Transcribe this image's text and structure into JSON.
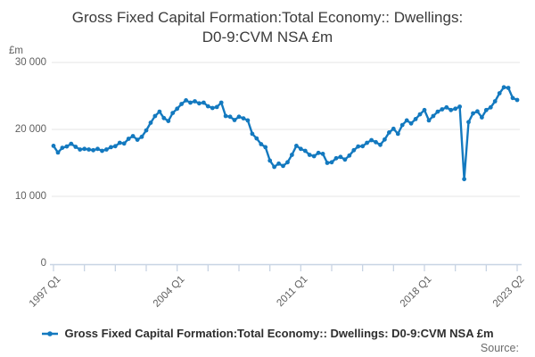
{
  "title": {
    "line1": "Gross Fixed Capital Formation:Total Economy:: Dwellings:",
    "line2": "D0-9:CVM NSA £m",
    "full": "Gross Fixed Capital Formation:Total Economy:: Dwellings: D0-9:CVM NSA £m"
  },
  "y_axis": {
    "unit_label": "£m",
    "ticks": [
      "30 000",
      "20 000",
      "10 000",
      "0"
    ],
    "min": 0,
    "max": 30000,
    "tick_interval": 10000
  },
  "x_axis": {
    "labels": [
      {
        "text": "1997 Q1",
        "tick": 0
      },
      {
        "text": "2004 Q1",
        "tick": 4
      },
      {
        "text": "2011 Q1",
        "tick": 8
      },
      {
        "text": "2018 Q1",
        "tick": 12
      },
      {
        "text": "2023 Q2",
        "tick": 15
      }
    ],
    "minor_tick_count": 16,
    "tick_interval_quarters": 7
  },
  "legend": {
    "label": "Gross Fixed Capital Formation:Total Economy:: Dwellings: D0-9:CVM NSA £m",
    "marker": "line-with-dot"
  },
  "source": {
    "label": "Source:"
  },
  "colors": {
    "line": "#1379bf",
    "grid": "#e6e6e6",
    "axis": "#c8d4e3",
    "title_text": "#3b3b3b",
    "axis_text": "#5f5f5f",
    "legend_text": "#2e2e2e"
  },
  "chart_data": {
    "type": "line",
    "title": "Gross Fixed Capital Formation:Total Economy:: Dwellings: D0-9:CVM NSA £m",
    "ylabel": "£m",
    "ylim": [
      0,
      30000
    ],
    "grid": "horizontal",
    "legend_position": "bottom-center",
    "frequency": "quarterly",
    "x_start": "1997 Q1",
    "x_end": "2023 Q2",
    "x_tick_labels": [
      "1997 Q1",
      "2004 Q1",
      "2011 Q1",
      "2018 Q1",
      "2023 Q2"
    ],
    "series": [
      {
        "name": "Gross Fixed Capital Formation:Total Economy:: Dwellings: D0-9:CVM NSA £m",
        "values": [
          17550,
          16550,
          17250,
          17450,
          17850,
          17400,
          17000,
          17100,
          17000,
          16900,
          17100,
          16800,
          17000,
          17350,
          17500,
          18000,
          17900,
          18600,
          19000,
          18450,
          18900,
          19850,
          21000,
          22000,
          22650,
          21700,
          21250,
          22450,
          23100,
          23800,
          24350,
          24000,
          24200,
          23900,
          24000,
          23450,
          23200,
          23350,
          24000,
          22000,
          21900,
          21400,
          21900,
          21650,
          21350,
          19350,
          18650,
          17800,
          17350,
          15350,
          14400,
          14900,
          14550,
          15100,
          16200,
          17550,
          17100,
          16800,
          16200,
          16000,
          16500,
          16350,
          15000,
          15100,
          15700,
          15900,
          15500,
          16100,
          16900,
          17450,
          17500,
          18000,
          18400,
          18100,
          17700,
          18500,
          19550,
          20100,
          19350,
          20650,
          21350,
          20900,
          21550,
          22250,
          22900,
          21350,
          22000,
          22650,
          23000,
          23300,
          22900,
          23100,
          23400,
          12580,
          21100,
          22400,
          22700,
          21800,
          22900,
          23300,
          24200,
          25400,
          26300,
          26200,
          24700,
          24400
        ]
      }
    ]
  }
}
